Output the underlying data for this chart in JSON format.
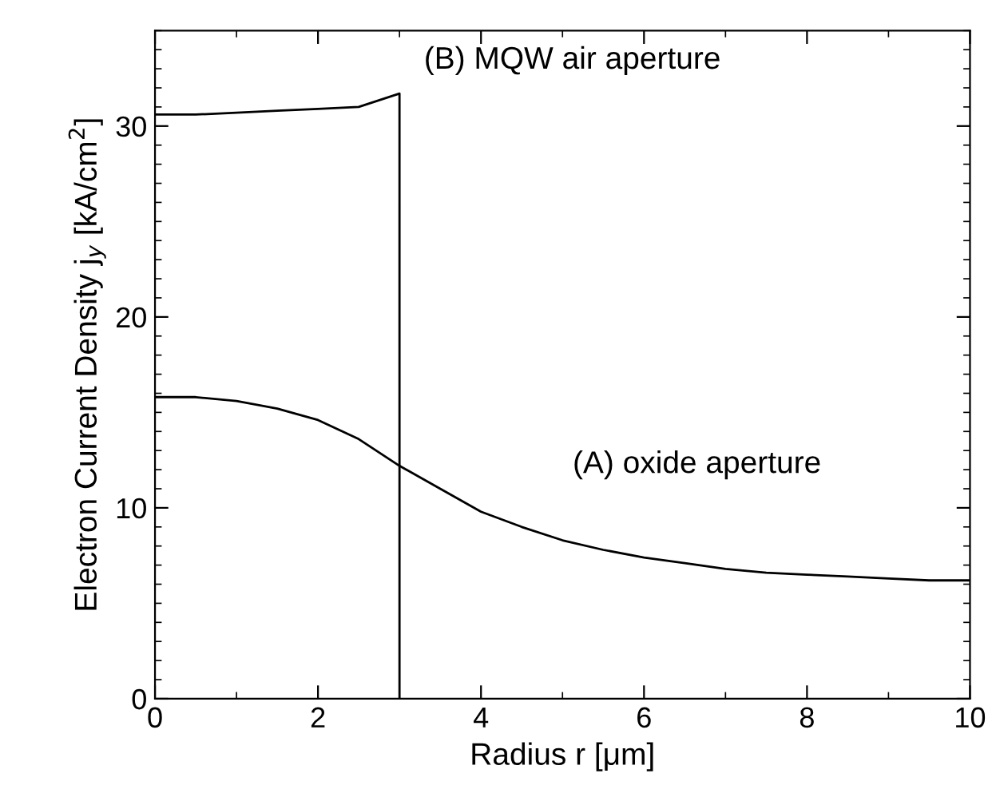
{
  "chart_data": {
    "type": "line",
    "xlabel": "Radius r [μm]",
    "ylabel": "Electron Current Density j$_{y}$ [kA/cm$^{2}$]",
    "xlim": [
      0,
      10
    ],
    "ylim": [
      0,
      35
    ],
    "xticks": [
      0,
      2,
      4,
      6,
      8,
      10
    ],
    "yticks": [
      0,
      10,
      20,
      30
    ],
    "grid": false,
    "marker": "none",
    "line_style": "solid",
    "annotations": [
      "(A) oxide aperture",
      "(B) MQW air aperture"
    ],
    "series": [
      {
        "color": "#000000",
        "x": [
          0,
          0.5,
          1,
          1.5,
          2,
          2.5,
          3,
          3.5,
          4,
          4.5,
          5,
          5.5,
          6,
          6.5,
          7,
          7.5,
          8,
          8.5,
          9,
          9.5,
          10
        ],
        "values": [
          15.8,
          15.8,
          15.6,
          15.2,
          14.6,
          13.6,
          12.2,
          11.0,
          9.8,
          9.0,
          8.3,
          7.8,
          7.4,
          7.1,
          6.8,
          6.6,
          6.5,
          6.4,
          6.3,
          6.2,
          6.2
        ]
      },
      {
        "color": "#000000",
        "x": [
          0,
          0.5,
          1,
          1.5,
          2,
          2.5,
          3,
          3
        ],
        "values": [
          30.6,
          30.6,
          30.7,
          30.8,
          30.9,
          31.0,
          31.7,
          0
        ]
      }
    ]
  }
}
